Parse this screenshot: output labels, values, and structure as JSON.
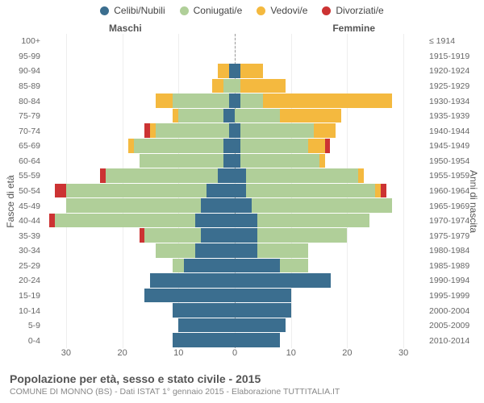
{
  "chart": {
    "type": "population-pyramid",
    "background_color": "#ffffff",
    "grid_color": "#eeeeee",
    "centerline_color": "#999999",
    "font_family": "Arial",
    "legend": [
      {
        "label": "Celibi/Nubili",
        "color": "#3b6e8f"
      },
      {
        "label": "Coniugati/e",
        "color": "#b0cf99"
      },
      {
        "label": "Vedovi/e",
        "color": "#f4b93f"
      },
      {
        "label": "Divorziati/e",
        "color": "#cc3333"
      }
    ],
    "header_male": "Maschi",
    "header_female": "Femmine",
    "yaxis_left_title": "Fasce di età",
    "yaxis_right_title": "Anni di nascita",
    "footer_title": "Popolazione per età, sesso e stato civile - 2015",
    "footer_sub": "COMUNE DI MONNO (BS) - Dati ISTAT 1° gennaio 2015 - Elaborazione TUTTITALIA.IT",
    "xaxis": {
      "max": 34,
      "ticks": [
        30,
        20,
        10,
        0,
        10,
        20,
        30
      ]
    },
    "age_bands": [
      "100+",
      "95-99",
      "90-94",
      "85-89",
      "80-84",
      "75-79",
      "70-74",
      "65-69",
      "60-64",
      "55-59",
      "50-54",
      "45-49",
      "40-44",
      "35-39",
      "30-34",
      "25-29",
      "20-24",
      "15-19",
      "10-14",
      "5-9",
      "0-4"
    ],
    "birth_bands": [
      "≤ 1914",
      "1915-1919",
      "1920-1924",
      "1925-1929",
      "1930-1934",
      "1935-1939",
      "1940-1944",
      "1945-1949",
      "1950-1954",
      "1955-1959",
      "1960-1964",
      "1965-1969",
      "1970-1974",
      "1975-1979",
      "1980-1984",
      "1985-1989",
      "1990-1994",
      "1995-1999",
      "2000-2004",
      "2005-2009",
      "2010-2014"
    ],
    "males": [
      {
        "single": 0,
        "married": 0,
        "widowed": 0,
        "divorced": 0
      },
      {
        "single": 0,
        "married": 0,
        "widowed": 0,
        "divorced": 0
      },
      {
        "single": 1,
        "married": 0,
        "widowed": 2,
        "divorced": 0
      },
      {
        "single": 0,
        "married": 2,
        "widowed": 2,
        "divorced": 0
      },
      {
        "single": 1,
        "married": 10,
        "widowed": 3,
        "divorced": 0
      },
      {
        "single": 2,
        "married": 8,
        "widowed": 1,
        "divorced": 0
      },
      {
        "single": 1,
        "married": 13,
        "widowed": 1,
        "divorced": 1
      },
      {
        "single": 2,
        "married": 16,
        "widowed": 1,
        "divorced": 0
      },
      {
        "single": 2,
        "married": 15,
        "widowed": 0,
        "divorced": 0
      },
      {
        "single": 3,
        "married": 20,
        "widowed": 0,
        "divorced": 1
      },
      {
        "single": 5,
        "married": 25,
        "widowed": 0,
        "divorced": 2
      },
      {
        "single": 6,
        "married": 24,
        "widowed": 0,
        "divorced": 0
      },
      {
        "single": 7,
        "married": 25,
        "widowed": 0,
        "divorced": 1
      },
      {
        "single": 6,
        "married": 10,
        "widowed": 0,
        "divorced": 1
      },
      {
        "single": 7,
        "married": 7,
        "widowed": 0,
        "divorced": 0
      },
      {
        "single": 9,
        "married": 2,
        "widowed": 0,
        "divorced": 0
      },
      {
        "single": 15,
        "married": 0,
        "widowed": 0,
        "divorced": 0
      },
      {
        "single": 16,
        "married": 0,
        "widowed": 0,
        "divorced": 0
      },
      {
        "single": 11,
        "married": 0,
        "widowed": 0,
        "divorced": 0
      },
      {
        "single": 10,
        "married": 0,
        "widowed": 0,
        "divorced": 0
      },
      {
        "single": 11,
        "married": 0,
        "widowed": 0,
        "divorced": 0
      }
    ],
    "females": [
      {
        "single": 0,
        "married": 0,
        "widowed": 0,
        "divorced": 0
      },
      {
        "single": 0,
        "married": 0,
        "widowed": 0,
        "divorced": 0
      },
      {
        "single": 1,
        "married": 0,
        "widowed": 4,
        "divorced": 0
      },
      {
        "single": 0,
        "married": 1,
        "widowed": 8,
        "divorced": 0
      },
      {
        "single": 1,
        "married": 4,
        "widowed": 23,
        "divorced": 0
      },
      {
        "single": 0,
        "married": 8,
        "widowed": 11,
        "divorced": 0
      },
      {
        "single": 1,
        "married": 13,
        "widowed": 4,
        "divorced": 0
      },
      {
        "single": 1,
        "married": 12,
        "widowed": 3,
        "divorced": 1
      },
      {
        "single": 1,
        "married": 14,
        "widowed": 1,
        "divorced": 0
      },
      {
        "single": 2,
        "married": 20,
        "widowed": 1,
        "divorced": 0
      },
      {
        "single": 2,
        "married": 23,
        "widowed": 1,
        "divorced": 1
      },
      {
        "single": 3,
        "married": 25,
        "widowed": 0,
        "divorced": 0
      },
      {
        "single": 4,
        "married": 20,
        "widowed": 0,
        "divorced": 0
      },
      {
        "single": 4,
        "married": 16,
        "widowed": 0,
        "divorced": 0
      },
      {
        "single": 4,
        "married": 9,
        "widowed": 0,
        "divorced": 0
      },
      {
        "single": 8,
        "married": 5,
        "widowed": 0,
        "divorced": 0
      },
      {
        "single": 17,
        "married": 0,
        "widowed": 0,
        "divorced": 0
      },
      {
        "single": 10,
        "married": 0,
        "widowed": 0,
        "divorced": 0
      },
      {
        "single": 10,
        "married": 0,
        "widowed": 0,
        "divorced": 0
      },
      {
        "single": 9,
        "married": 0,
        "widowed": 0,
        "divorced": 0
      },
      {
        "single": 8,
        "married": 0,
        "widowed": 0,
        "divorced": 0
      }
    ]
  }
}
